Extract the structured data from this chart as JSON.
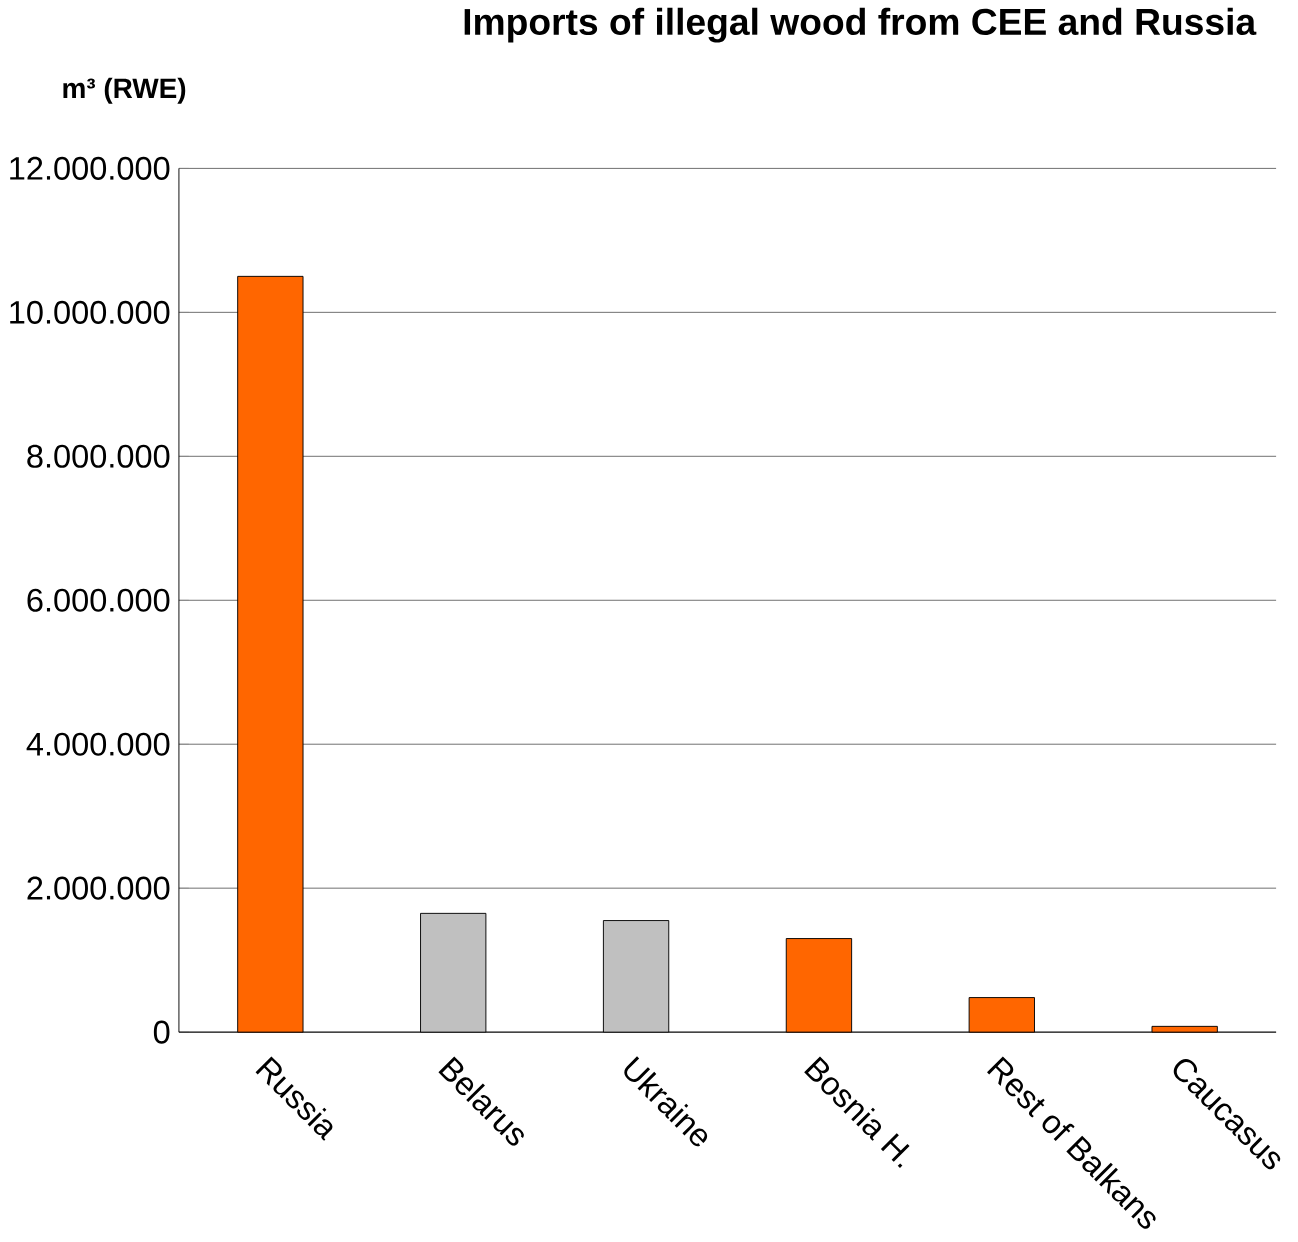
{
  "chart_data": {
    "type": "bar",
    "title": "Imports of illegal wood from CEE and Russia",
    "ylabel": "m³ (RWE)",
    "categories": [
      "Russia",
      "Belarus",
      "Ukraine",
      "Bosnia H.",
      "Rest of Balkans",
      "Caucasus"
    ],
    "values": [
      10500000,
      1650000,
      1550000,
      1300000,
      480000,
      80000
    ],
    "colors": [
      "#ff6600",
      "#c0c0c0",
      "#c0c0c0",
      "#ff6600",
      "#ff6600",
      "#ff6600"
    ],
    "ylim": [
      0,
      12000000
    ],
    "yticks": [
      {
        "value": 0,
        "label": "0"
      },
      {
        "value": 2000000,
        "label": "2.000.000"
      },
      {
        "value": 4000000,
        "label": "4.000.000"
      },
      {
        "value": 6000000,
        "label": "6.000.000"
      },
      {
        "value": 8000000,
        "label": "8.000.000"
      },
      {
        "value": 10000000,
        "label": "10.000.000"
      },
      {
        "value": 12000000,
        "label": "12.000.000"
      }
    ],
    "grid": "y"
  }
}
